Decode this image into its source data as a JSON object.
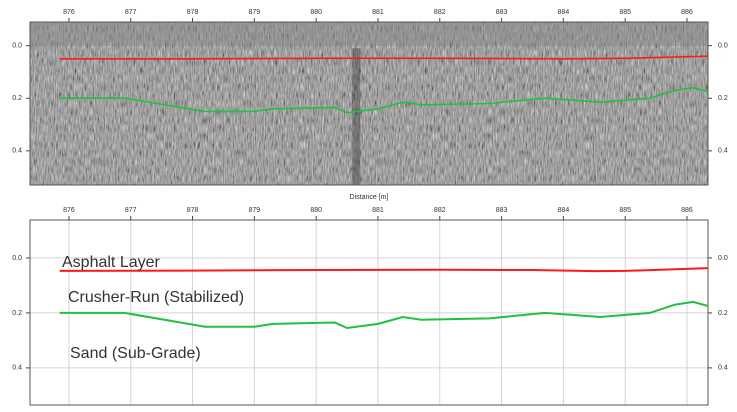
{
  "chart_data": [
    {
      "type": "radargram",
      "xlabel": "Distance [m]",
      "xlim": [
        875.37,
        886.34
      ],
      "xticks": [
        876,
        877,
        878,
        879,
        880,
        881,
        882,
        883,
        884,
        885,
        886
      ],
      "ylim": [
        -0.09,
        0.53
      ],
      "yticks": [
        {
          "value": 0,
          "label": "0.0"
        },
        {
          "value": 0.2,
          "label": "0.2"
        },
        {
          "value": 0.4,
          "label": "0.4"
        }
      ],
      "series": [
        {
          "color": "#ff1a1a",
          "x": [
            875.85,
            878,
            880,
            882,
            884,
            885,
            886.34
          ],
          "values": [
            0.05,
            0.05,
            0.048,
            0.048,
            0.05,
            0.048,
            0.04
          ]
        },
        {
          "color": "#22c040",
          "x": [
            875.85,
            876.9,
            878.2,
            879.0,
            879.3,
            880.3,
            880.5,
            881.0,
            881.4,
            881.7,
            882.8,
            883.7,
            884.6,
            885.4,
            885.8,
            886.1,
            886.34
          ],
          "values": [
            0.2,
            0.2,
            0.25,
            0.25,
            0.24,
            0.235,
            0.255,
            0.24,
            0.215,
            0.225,
            0.22,
            0.2,
            0.215,
            0.2,
            0.17,
            0.16,
            0.175
          ]
        }
      ]
    },
    {
      "type": "line",
      "grid": true,
      "xlim": [
        875.37,
        886.34
      ],
      "xticks": [
        876,
        877,
        878,
        879,
        880,
        881,
        882,
        883,
        884,
        885,
        886
      ],
      "ylim": [
        -0.138,
        0.535
      ],
      "yticks": [
        {
          "value": 0,
          "label": "0.0"
        },
        {
          "value": 0.2,
          "label": "0.2"
        },
        {
          "value": 0.4,
          "label": "0.4"
        }
      ],
      "annotations": [
        {
          "text": "Asphalt Layer",
          "color": "#e00000"
        },
        {
          "text": "Crusher-Run (Stabilized)",
          "color": "#22b040"
        },
        {
          "text": "Sand (Sub-Grade)",
          "color": "#1fa8e0"
        }
      ],
      "series": [
        {
          "color": "#ff1a1a",
          "x": [
            875.85,
            878,
            880,
            882,
            883.5,
            884.5,
            885,
            886.34
          ],
          "values": [
            0.047,
            0.046,
            0.044,
            0.043,
            0.044,
            0.048,
            0.047,
            0.037
          ]
        },
        {
          "color": "#22c040",
          "x": [
            875.85,
            876.9,
            878.2,
            879.0,
            879.3,
            880.3,
            880.5,
            881.0,
            881.4,
            881.7,
            882.8,
            883.7,
            884.6,
            885.4,
            885.8,
            886.1,
            886.34
          ],
          "values": [
            0.2,
            0.2,
            0.25,
            0.25,
            0.24,
            0.235,
            0.255,
            0.24,
            0.215,
            0.225,
            0.22,
            0.2,
            0.215,
            0.2,
            0.17,
            0.16,
            0.175
          ]
        }
      ]
    }
  ]
}
